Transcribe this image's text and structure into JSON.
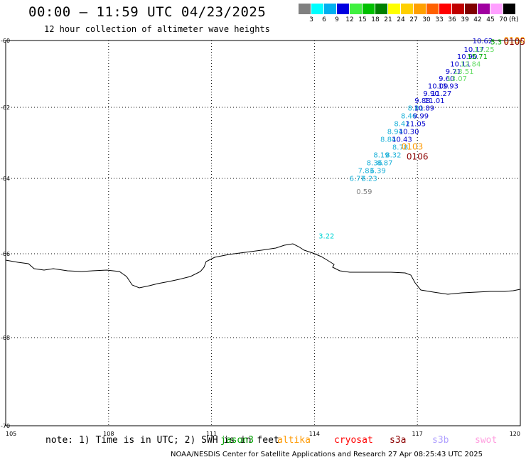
{
  "header": {
    "title": "00:00 – 11:59 UTC 04/23/2025",
    "subtitle": "12 hour collection of altimeter wave heights"
  },
  "scale": {
    "unit": "(ft)",
    "labels": [
      "3",
      "6",
      "9",
      "12",
      "15",
      "18",
      "21",
      "24",
      "27",
      "30",
      "33",
      "36",
      "39",
      "42",
      "45",
      "70"
    ],
    "colors": [
      "#808080",
      "#00ffff",
      "#00b0f0",
      "#0000e0",
      "#40f040",
      "#00c000",
      "#008000",
      "#ffff00",
      "#ffd000",
      "#ffa000",
      "#ff6000",
      "#ff0000",
      "#c00000",
      "#800000",
      "#a000a0",
      "#ffa0ff",
      "#000000"
    ]
  },
  "map": {
    "lat_labels": [
      "-60",
      "-62",
      "-64",
      "-66",
      "-68",
      "-70"
    ],
    "lon_labels": [
      "105",
      "108",
      "111",
      "114",
      "117",
      "120"
    ],
    "points": [
      {
        "text": "10.62",
        "lon": 118.9,
        "lat": -60.0,
        "color": "#0000cd"
      },
      {
        "text": "5.3",
        "lon": 119.3,
        "lat": -60.03,
        "color": "#00aa00"
      },
      {
        "text": "0100",
        "lon": 119.65,
        "lat": -59.98,
        "color": "#ff9900"
      },
      {
        "text": "0105",
        "lon": 120.1,
        "lat": -60.04,
        "color": "#8b0000"
      },
      {
        "text": "10.17",
        "lon": 118.65,
        "lat": -60.25,
        "color": "#0000cd"
      },
      {
        "text": "13.25",
        "lon": 118.95,
        "lat": -60.25,
        "color": "#66dd66"
      },
      {
        "text": "10.90",
        "lon": 118.45,
        "lat": -60.47,
        "color": "#0000cd"
      },
      {
        "text": "15.71",
        "lon": 118.75,
        "lat": -60.47,
        "color": "#00aa00"
      },
      {
        "text": "10.11",
        "lon": 118.25,
        "lat": -60.69,
        "color": "#0000cd"
      },
      {
        "text": "12.84",
        "lon": 118.55,
        "lat": -60.69,
        "color": "#66dd66"
      },
      {
        "text": "9.71",
        "lon": 118.05,
        "lat": -60.91,
        "color": "#0000cd"
      },
      {
        "text": "13.51",
        "lon": 118.35,
        "lat": -60.91,
        "color": "#66dd66"
      },
      {
        "text": "9.60",
        "lon": 117.85,
        "lat": -61.13,
        "color": "#0000cd"
      },
      {
        "text": "13.07",
        "lon": 118.15,
        "lat": -61.13,
        "color": "#66dd66"
      },
      {
        "text": "10.09",
        "lon": 117.6,
        "lat": -61.35,
        "color": "#0000cd"
      },
      {
        "text": "11.93",
        "lon": 117.9,
        "lat": -61.35,
        "color": "#0000cd"
      },
      {
        "text": "9.90",
        "lon": 117.4,
        "lat": -61.57,
        "color": "#0000cd"
      },
      {
        "text": "11.27",
        "lon": 117.7,
        "lat": -61.57,
        "color": "#0000cd"
      },
      {
        "text": "9.88",
        "lon": 117.15,
        "lat": -61.79,
        "color": "#0000cd"
      },
      {
        "text": "11.01",
        "lon": 117.5,
        "lat": -61.79,
        "color": "#0000cd"
      },
      {
        "text": "8.81",
        "lon": 116.95,
        "lat": -62.01,
        "color": "#1ab0d8"
      },
      {
        "text": "10.89",
        "lon": 117.2,
        "lat": -62.01,
        "color": "#0000cd"
      },
      {
        "text": "8.46",
        "lon": 116.75,
        "lat": -62.23,
        "color": "#1ab0d8"
      },
      {
        "text": "9.99",
        "lon": 117.1,
        "lat": -62.23,
        "color": "#0000cd"
      },
      {
        "text": "8.42",
        "lon": 116.55,
        "lat": -62.45,
        "color": "#1ab0d8"
      },
      {
        "text": "11.05",
        "lon": 116.95,
        "lat": -62.45,
        "color": "#0000cd"
      },
      {
        "text": "8.94",
        "lon": 116.35,
        "lat": -62.67,
        "color": "#1ab0d8"
      },
      {
        "text": "10.30",
        "lon": 116.75,
        "lat": -62.67,
        "color": "#0000cd"
      },
      {
        "text": "8.84",
        "lon": 116.15,
        "lat": -62.89,
        "color": "#1ab0d8"
      },
      {
        "text": "10.43",
        "lon": 116.55,
        "lat": -62.89,
        "color": "#0000cd"
      },
      {
        "text": "8.78",
        "lon": 116.5,
        "lat": -63.11,
        "color": "#1ab0d8"
      },
      {
        "text": "0103",
        "lon": 116.85,
        "lat": -63.11,
        "color": "#ff9900"
      },
      {
        "text": "8.19",
        "lon": 115.95,
        "lat": -63.33,
        "color": "#1ab0d8"
      },
      {
        "text": "8.32",
        "lon": 116.3,
        "lat": -63.33,
        "color": "#1ab0d8"
      },
      {
        "text": "0106",
        "lon": 117.0,
        "lat": -63.39,
        "color": "#8b0000"
      },
      {
        "text": "8.36",
        "lon": 115.75,
        "lat": -63.55,
        "color": "#1ab0d8"
      },
      {
        "text": "8.87",
        "lon": 116.05,
        "lat": -63.55,
        "color": "#1ab0d8"
      },
      {
        "text": "7.83",
        "lon": 115.5,
        "lat": -63.77,
        "color": "#1ab0d8"
      },
      {
        "text": "6.39",
        "lon": 115.85,
        "lat": -63.77,
        "color": "#1ab0d8"
      },
      {
        "text": "6.77",
        "lon": 115.25,
        "lat": -63.99,
        "color": "#1ab0d8"
      },
      {
        "text": "6.23",
        "lon": 115.6,
        "lat": -63.99,
        "color": "#1ab0d8"
      },
      {
        "text": "0.59",
        "lon": 115.45,
        "lat": -64.34,
        "color": "#808080"
      },
      {
        "text": "3.22",
        "lon": 114.35,
        "lat": -65.52,
        "color": "#00d4d4"
      }
    ]
  },
  "note": {
    "text": "note: 1) Time is in UTC; 2) SWH is in feet",
    "satellites": [
      {
        "name": "jason3",
        "color": "#00a000"
      },
      {
        "name": "altika",
        "color": "#ff9900"
      },
      {
        "name": "cryosat",
        "color": "#ff0000"
      },
      {
        "name": "s3a",
        "color": "#8b0000"
      },
      {
        "name": "s3b",
        "color": "#b0a0ff"
      },
      {
        "name": "swot",
        "color": "#ffa0e0"
      }
    ]
  },
  "footer": {
    "text": "NOAA/NESDIS Center for Satellite Applications and Research    27 Apr 08:25:43 UTC 2025"
  }
}
